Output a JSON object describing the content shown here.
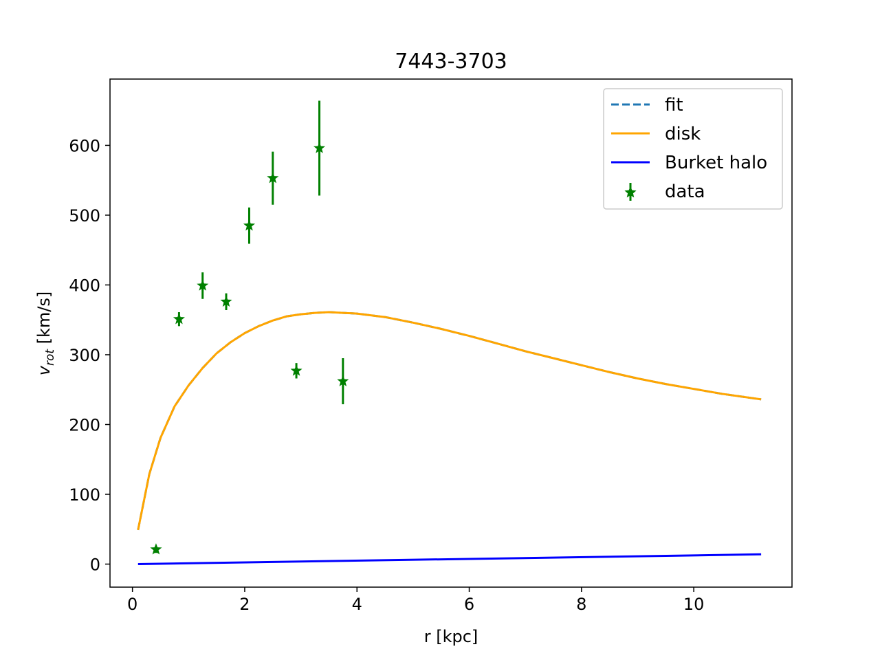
{
  "chart_data": {
    "type": "line",
    "title": "7443-3703",
    "xlabel": "r [kpc]",
    "ylabel_main": "v",
    "ylabel_sub": "rot",
    "ylabel_unit": " [km/s]",
    "xlim": [
      -0.4,
      11.75
    ],
    "ylim": [
      -33,
      695
    ],
    "xticks": [
      0,
      2,
      4,
      6,
      8,
      10
    ],
    "yticks": [
      0,
      100,
      200,
      300,
      400,
      500,
      600
    ],
    "grid": false,
    "legend_position": "top-right",
    "colors": {
      "fit": "#1f77b4",
      "disk": "#ffa500",
      "halo": "#0000ff",
      "data": "#008000"
    },
    "series": [
      {
        "name": "fit",
        "style": "dashed",
        "x": [
          0.1,
          0.3,
          0.5,
          0.75,
          1.0,
          1.25,
          1.5,
          1.75,
          2.0,
          2.25,
          2.5,
          2.75,
          3.0,
          3.25,
          3.5,
          3.75,
          4.0,
          4.5,
          5.0,
          5.5,
          6.0,
          6.5,
          7.0,
          7.5,
          8.0,
          8.5,
          9.0,
          9.5,
          10.0,
          10.5,
          11.2
        ],
        "y": [
          49,
          129,
          181,
          226,
          256,
          281,
          302,
          318,
          331,
          341,
          349,
          355,
          358,
          360,
          361,
          360,
          359,
          354,
          346,
          337,
          327,
          316,
          305,
          295,
          285,
          275,
          266,
          258,
          251,
          244,
          236
        ]
      },
      {
        "name": "disk",
        "style": "solid",
        "x": [
          0.1,
          0.3,
          0.5,
          0.75,
          1.0,
          1.25,
          1.5,
          1.75,
          2.0,
          2.25,
          2.5,
          2.75,
          3.0,
          3.25,
          3.5,
          3.75,
          4.0,
          4.5,
          5.0,
          5.5,
          6.0,
          6.5,
          7.0,
          7.5,
          8.0,
          8.5,
          9.0,
          9.5,
          10.0,
          10.5,
          11.2
        ],
        "y": [
          49,
          129,
          181,
          226,
          256,
          281,
          302,
          318,
          331,
          341,
          349,
          355,
          358,
          360,
          361,
          360,
          359,
          354,
          346,
          337,
          327,
          316,
          305,
          295,
          285,
          275,
          266,
          258,
          251,
          244,
          236
        ]
      },
      {
        "name": "Burket halo",
        "style": "solid",
        "x": [
          0.1,
          11.2
        ],
        "y": [
          0,
          14
        ]
      }
    ],
    "data_points": {
      "name": "data",
      "x": [
        0.42,
        0.83,
        1.25,
        1.67,
        2.08,
        2.5,
        2.92,
        3.33,
        3.75
      ],
      "y": [
        21,
        351,
        399,
        376,
        485,
        553,
        277,
        596,
        262
      ],
      "err": [
        5,
        10,
        19,
        12,
        26,
        38,
        11,
        68,
        33
      ]
    },
    "legend": [
      "fit",
      "disk",
      "Burket halo",
      "data"
    ]
  }
}
